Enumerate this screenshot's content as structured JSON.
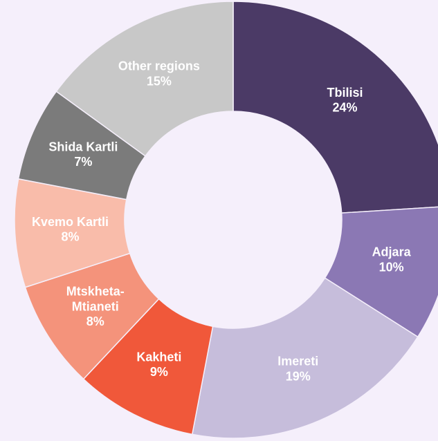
{
  "chart_data": {
    "type": "donut",
    "categories": [
      "Tbilisi",
      "Adjara",
      "Imereti",
      "Kakheti",
      "Mtskheta-Mtianeti",
      "Kvemo Kartli",
      "Shida Kartli",
      "Other regions"
    ],
    "values": [
      24,
      10,
      19,
      9,
      8,
      8,
      7,
      15
    ],
    "value_labels": [
      "24%",
      "10%",
      "19%",
      "9%",
      "8%",
      "8%",
      "7%",
      "15%"
    ],
    "colors": [
      "#4b3a66",
      "#8b78b4",
      "#c6bddb",
      "#f0583a",
      "#f4937b",
      "#f9bcaa",
      "#7b7b7b",
      "#c8c8c8"
    ]
  }
}
